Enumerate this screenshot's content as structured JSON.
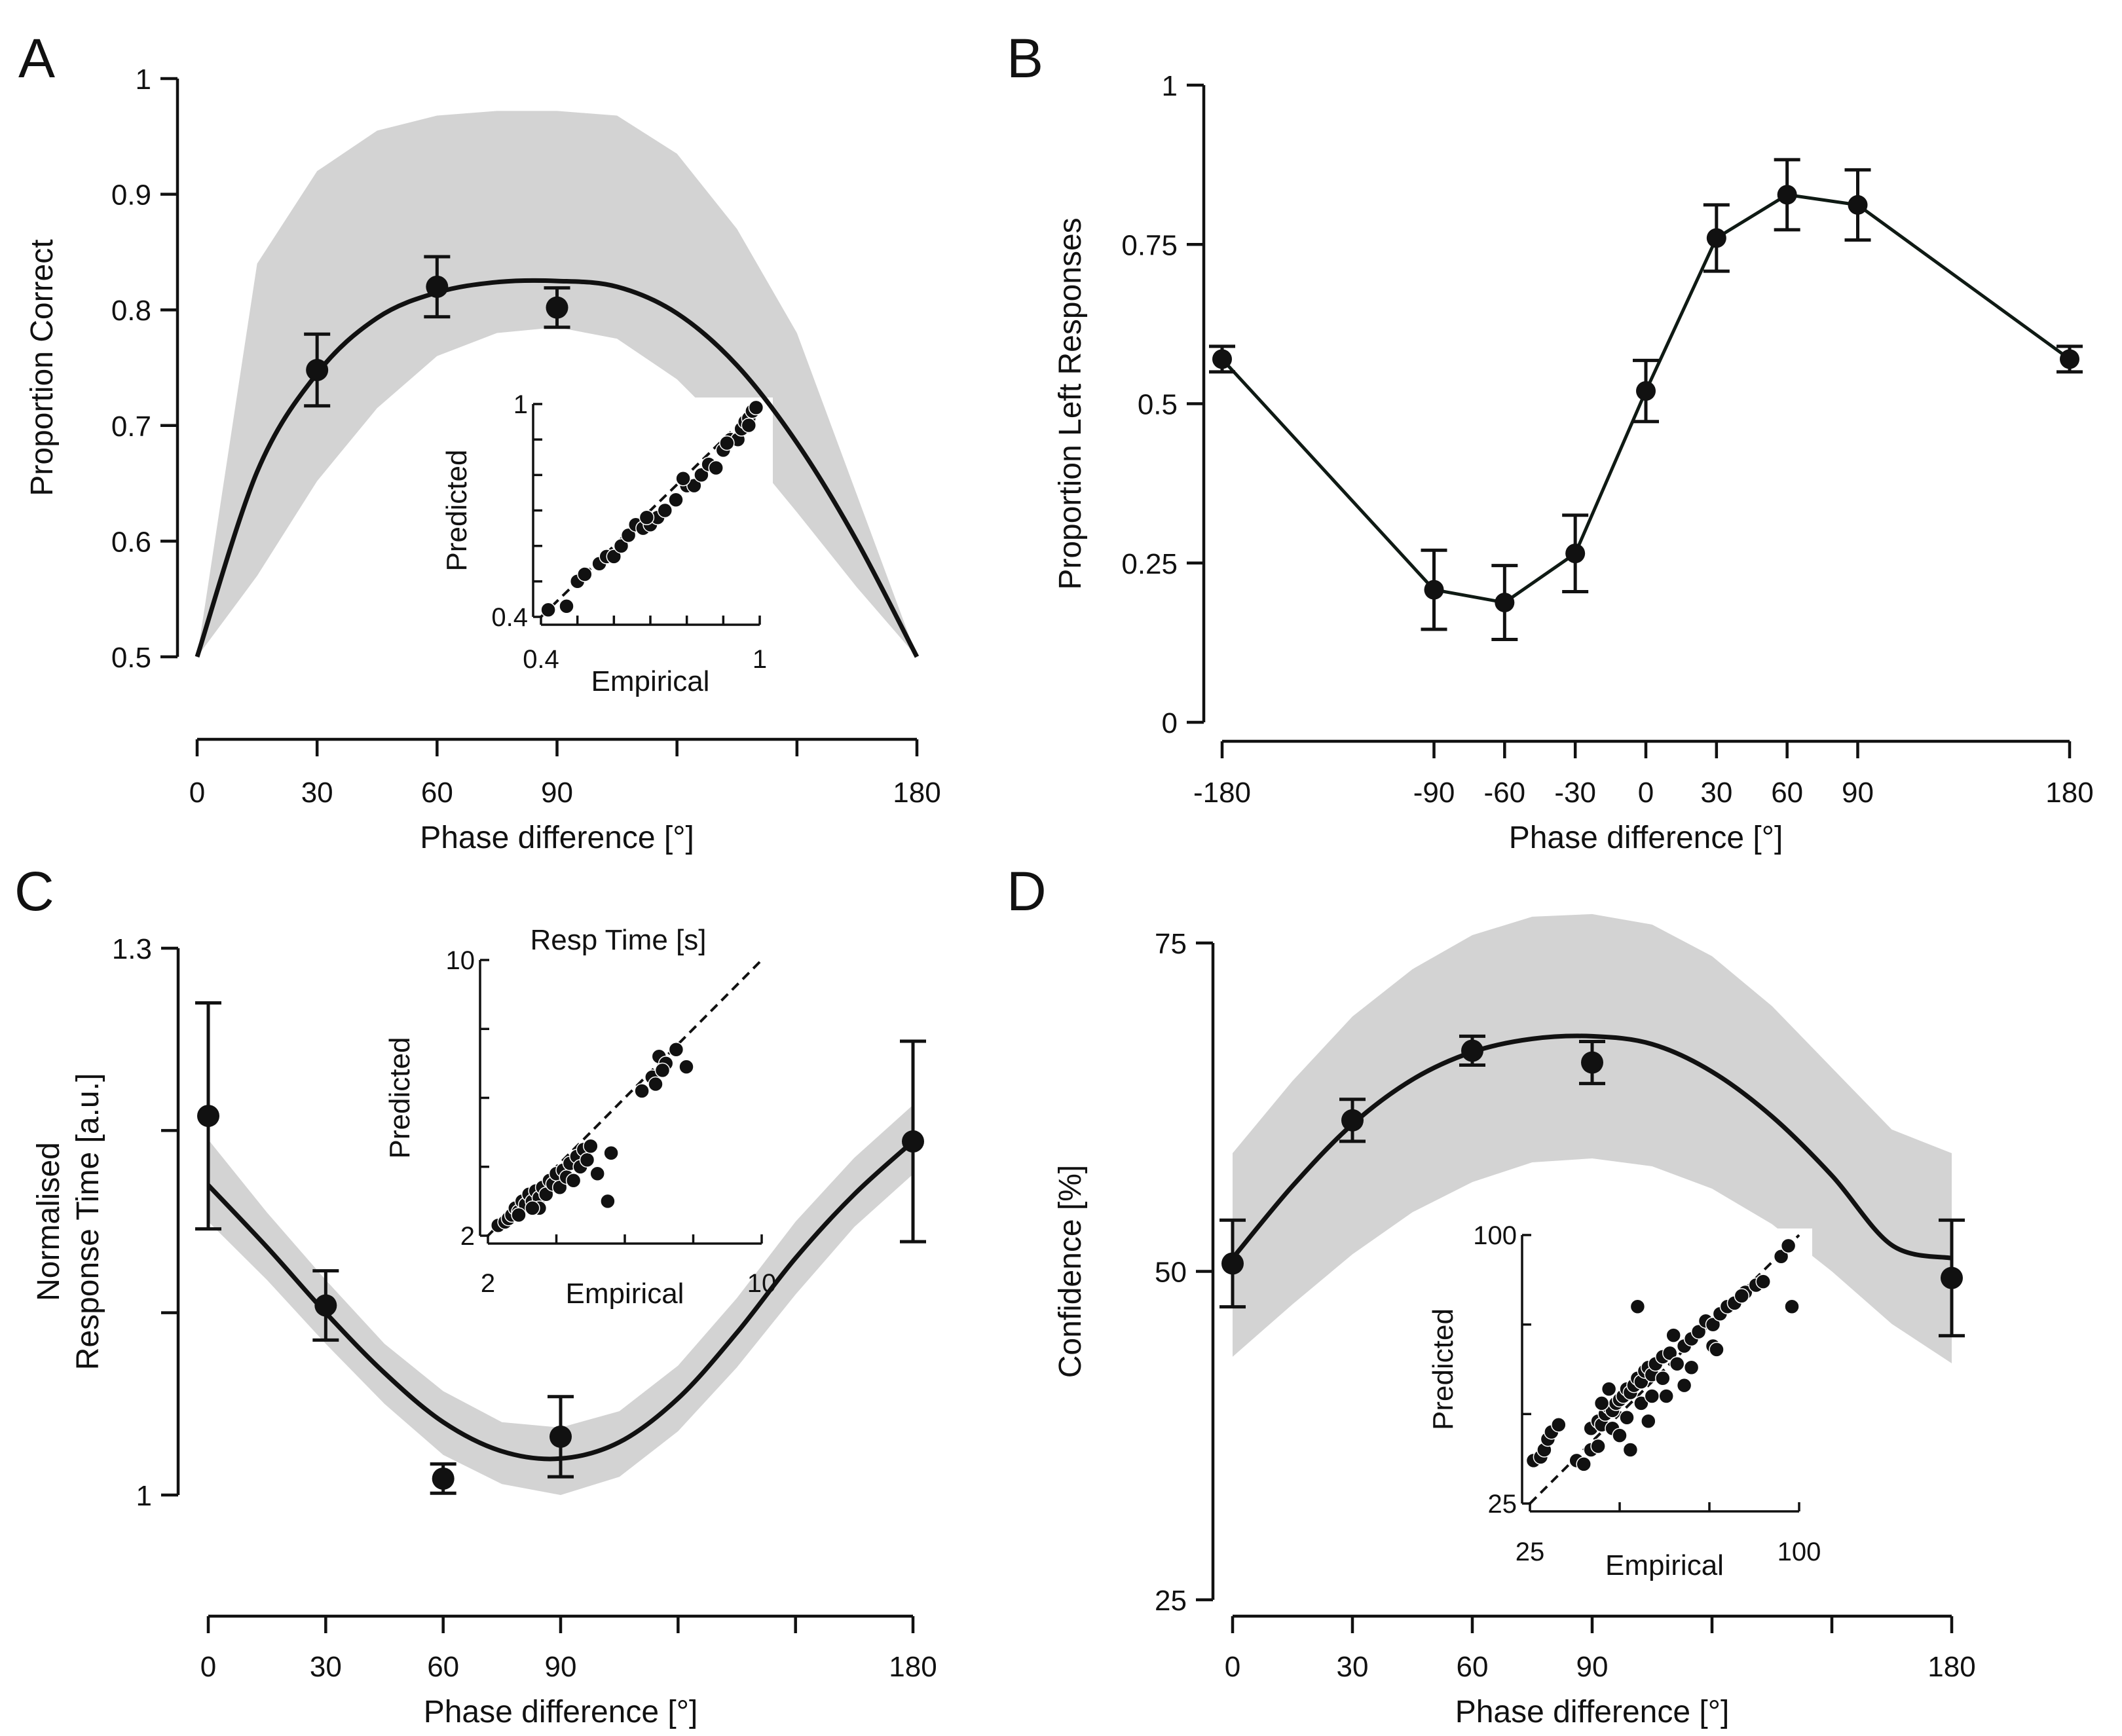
{
  "chart_data": [
    {
      "panel": "A",
      "type": "line",
      "xlabel": "Phase difference [°]",
      "ylabel": "Proportion Correct",
      "xlim": [
        0,
        180
      ],
      "ylim": [
        0.5,
        1
      ],
      "x_ticks": [
        0,
        30,
        60,
        90,
        120,
        150,
        180
      ],
      "x_tick_labels": [
        "0",
        "30",
        "60",
        "90",
        "",
        "",
        "180"
      ],
      "y_ticks": [
        0.5,
        0.6,
        0.7,
        0.8,
        0.9,
        1
      ],
      "y_tick_labels": [
        "0.5",
        "0.6",
        "0.7",
        "0.8",
        "0.9",
        "1"
      ],
      "points": [
        {
          "x": 30,
          "y": 0.748,
          "err": 0.031
        },
        {
          "x": 60,
          "y": 0.82,
          "err": 0.026
        },
        {
          "x": 90,
          "y": 0.802,
          "err": 0.017
        }
      ],
      "fit": {
        "x": [
          0,
          15,
          30,
          45,
          60,
          75,
          90,
          105,
          120,
          135,
          150,
          165,
          180
        ],
        "mean": [
          0.5,
          0.66,
          0.745,
          0.793,
          0.815,
          0.824,
          0.825,
          0.82,
          0.797,
          0.752,
          0.685,
          0.6,
          0.5
        ],
        "lower": [
          0.5,
          0.57,
          0.652,
          0.715,
          0.76,
          0.78,
          0.785,
          0.775,
          0.74,
          0.688,
          0.625,
          0.56,
          0.5
        ],
        "upper": [
          0.5,
          0.84,
          0.92,
          0.955,
          0.968,
          0.972,
          0.972,
          0.968,
          0.935,
          0.87,
          0.78,
          0.64,
          0.5
        ]
      },
      "inset": {
        "xlabel": "Empirical",
        "ylabel": "Predicted",
        "title": "",
        "xlim": [
          0.4,
          1
        ],
        "ylim": [
          0.4,
          1
        ],
        "tick_labels": {
          "xmin": "0.4",
          "xmax": "1",
          "ymin": "0.4",
          "ymax": "1"
        },
        "minor_ticks": [
          0.5,
          0.6,
          0.7,
          0.8,
          0.9
        ],
        "points": [
          [
            0.42,
            0.42
          ],
          [
            0.47,
            0.43
          ],
          [
            0.5,
            0.5
          ],
          [
            0.52,
            0.52
          ],
          [
            0.56,
            0.55
          ],
          [
            0.58,
            0.57
          ],
          [
            0.6,
            0.57
          ],
          [
            0.62,
            0.6
          ],
          [
            0.64,
            0.63
          ],
          [
            0.66,
            0.66
          ],
          [
            0.68,
            0.65
          ],
          [
            0.7,
            0.66
          ],
          [
            0.72,
            0.68
          ],
          [
            0.74,
            0.7
          ],
          [
            0.69,
            0.68
          ],
          [
            0.77,
            0.73
          ],
          [
            0.8,
            0.77
          ],
          [
            0.82,
            0.77
          ],
          [
            0.84,
            0.8
          ],
          [
            0.86,
            0.83
          ],
          [
            0.88,
            0.82
          ],
          [
            0.9,
            0.87
          ],
          [
            0.92,
            0.9
          ],
          [
            0.94,
            0.9
          ],
          [
            0.95,
            0.93
          ],
          [
            0.96,
            0.95
          ],
          [
            0.97,
            0.96
          ],
          [
            0.98,
            0.98
          ],
          [
            0.99,
            0.99
          ],
          [
            0.97,
            0.94
          ],
          [
            0.91,
            0.89
          ],
          [
            0.79,
            0.79
          ]
        ]
      }
    },
    {
      "panel": "B",
      "type": "line",
      "xlabel": "Phase difference [°]",
      "ylabel": "Proportion Left Responses",
      "xlim": [
        -180,
        180
      ],
      "ylim": [
        0,
        1
      ],
      "x_ticks": [
        -180,
        -90,
        -60,
        -30,
        0,
        30,
        60,
        90,
        180
      ],
      "x_tick_labels": [
        "-180",
        "-90",
        "-60",
        "-30",
        "0",
        "30",
        "60",
        "90",
        "180"
      ],
      "y_ticks": [
        0,
        0.25,
        0.5,
        0.75,
        1
      ],
      "y_tick_labels": [
        "0",
        "0.25",
        "0.5",
        "0.75",
        "1"
      ],
      "points": [
        {
          "x": -180,
          "y": 0.57,
          "err": 0.02
        },
        {
          "x": -90,
          "y": 0.208,
          "err": 0.062
        },
        {
          "x": -60,
          "y": 0.188,
          "err": 0.058
        },
        {
          "x": -30,
          "y": 0.265,
          "err": 0.06
        },
        {
          "x": 0,
          "y": 0.52,
          "err": 0.048
        },
        {
          "x": 30,
          "y": 0.76,
          "err": 0.052
        },
        {
          "x": 60,
          "y": 0.828,
          "err": 0.055
        },
        {
          "x": 90,
          "y": 0.812,
          "err": 0.055
        },
        {
          "x": 180,
          "y": 0.57,
          "err": 0.02
        }
      ]
    },
    {
      "panel": "C",
      "type": "line",
      "xlabel": "Phase difference [°]",
      "ylabel": "Normalised Response Time [a.u.]",
      "xlim": [
        0,
        180
      ],
      "ylim": [
        1,
        1.3
      ],
      "x_ticks": [
        0,
        30,
        60,
        90,
        120,
        150,
        180
      ],
      "x_tick_labels": [
        "0",
        "30",
        "60",
        "90",
        "",
        "",
        "180"
      ],
      "y_ticks": [
        1,
        1.1,
        1.2,
        1.3
      ],
      "y_tick_labels": [
        "1",
        "",
        "",
        "1.3"
      ],
      "points": [
        {
          "x": 0,
          "y": 1.208,
          "err": 0.062
        },
        {
          "x": 30,
          "y": 1.104,
          "err": 0.019
        },
        {
          "x": 60,
          "y": 1.009,
          "err": 0.008
        },
        {
          "x": 90,
          "y": 1.032,
          "err": 0.022
        },
        {
          "x": 180,
          "y": 1.194,
          "err": 0.055
        }
      ],
      "fit": {
        "x": [
          0,
          15,
          30,
          45,
          60,
          75,
          90,
          105,
          120,
          135,
          150,
          165,
          180
        ],
        "mean": [
          1.17,
          1.136,
          1.1,
          1.067,
          1.04,
          1.024,
          1.02,
          1.029,
          1.053,
          1.089,
          1.13,
          1.165,
          1.194
        ],
        "lower": [
          1.15,
          1.118,
          1.083,
          1.05,
          1.022,
          1.006,
          1.0,
          1.01,
          1.035,
          1.07,
          1.11,
          1.147,
          1.176
        ],
        "upper": [
          1.195,
          1.155,
          1.118,
          1.083,
          1.057,
          1.04,
          1.037,
          1.046,
          1.071,
          1.108,
          1.15,
          1.185,
          1.214
        ]
      },
      "inset": {
        "xlabel": "Empirical",
        "ylabel": "Predicted",
        "title": "Resp Time [s]",
        "xlim": [
          2,
          10
        ],
        "ylim": [
          2,
          10
        ],
        "tick_labels": {
          "xmin": "2",
          "xmax": "10",
          "ymin": "2",
          "ymax": "10"
        },
        "minor_ticks": [
          4,
          6,
          8
        ],
        "points": [
          [
            2.3,
            2.3
          ],
          [
            2.5,
            2.4
          ],
          [
            2.6,
            2.5
          ],
          [
            2.7,
            2.6
          ],
          [
            2.8,
            2.8
          ],
          [
            2.9,
            2.7
          ],
          [
            3.0,
            3.0
          ],
          [
            3.1,
            2.9
          ],
          [
            3.2,
            3.2
          ],
          [
            3.3,
            3.0
          ],
          [
            3.4,
            3.3
          ],
          [
            3.5,
            3.1
          ],
          [
            3.6,
            3.4
          ],
          [
            3.7,
            3.2
          ],
          [
            3.8,
            3.6
          ],
          [
            3.9,
            3.5
          ],
          [
            4.0,
            3.8
          ],
          [
            4.1,
            3.4
          ],
          [
            4.2,
            3.9
          ],
          [
            4.3,
            3.7
          ],
          [
            4.4,
            4.1
          ],
          [
            4.5,
            3.6
          ],
          [
            4.6,
            4.3
          ],
          [
            4.7,
            4.0
          ],
          [
            4.8,
            4.5
          ],
          [
            4.9,
            4.2
          ],
          [
            5.0,
            4.6
          ],
          [
            3.5,
            2.8
          ],
          [
            5.5,
            3.0
          ],
          [
            5.2,
            3.8
          ],
          [
            5.6,
            4.4
          ],
          [
            2.9,
            2.6
          ],
          [
            3.3,
            2.8
          ],
          [
            6.5,
            6.2
          ],
          [
            6.8,
            6.6
          ],
          [
            7.0,
            7.2
          ],
          [
            7.2,
            7.0
          ],
          [
            7.5,
            7.4
          ],
          [
            7.8,
            6.9
          ],
          [
            6.9,
            6.4
          ],
          [
            7.1,
            6.8
          ]
        ]
      }
    },
    {
      "panel": "D",
      "type": "line",
      "xlabel": "Phase difference [°]",
      "ylabel": "Confidence [%]",
      "xlim": [
        0,
        180
      ],
      "ylim": [
        25,
        75
      ],
      "x_ticks": [
        0,
        30,
        60,
        90,
        120,
        150,
        180
      ],
      "x_tick_labels": [
        "0",
        "30",
        "60",
        "90",
        "",
        "",
        "180"
      ],
      "y_ticks": [
        25,
        50,
        75
      ],
      "y_tick_labels": [
        "25",
        "50",
        "75"
      ],
      "points": [
        {
          "x": 0,
          "y": 50.6,
          "err": 3.3
        },
        {
          "x": 30,
          "y": 61.5,
          "err": 1.6
        },
        {
          "x": 60,
          "y": 66.8,
          "err": 1.1
        },
        {
          "x": 90,
          "y": 65.9,
          "err": 1.6
        },
        {
          "x": 180,
          "y": 49.5,
          "err": 4.4
        }
      ],
      "fit": {
        "x": [
          0,
          15,
          30,
          45,
          60,
          75,
          90,
          105,
          120,
          135,
          150,
          165,
          180
        ],
        "mean": [
          51,
          56.5,
          61.2,
          64.6,
          66.7,
          67.7,
          67.9,
          67.3,
          65.2,
          61.8,
          57.3,
          52,
          51
        ],
        "lower": [
          43.5,
          47.5,
          51.3,
          54.5,
          56.8,
          58.3,
          58.6,
          58.0,
          56.3,
          53.6,
          50.0,
          46.0,
          43.0
        ],
        "upper": [
          59,
          64.5,
          69.4,
          73.0,
          75.6,
          77.0,
          77.2,
          76.4,
          74.0,
          70.2,
          65.5,
          60.8,
          59
        ]
      },
      "inset": {
        "xlabel": "Empirical",
        "ylabel": "Predicted",
        "title": "",
        "xlim": [
          25,
          100
        ],
        "ylim": [
          25,
          100
        ],
        "tick_labels": {
          "xmin": "25",
          "xmax": "100",
          "ymin": "25",
          "ymax": "100"
        },
        "minor_ticks": [
          50,
          75
        ],
        "points": [
          [
            26,
            37
          ],
          [
            28,
            38
          ],
          [
            29,
            40
          ],
          [
            30,
            43
          ],
          [
            31,
            45
          ],
          [
            33,
            47
          ],
          [
            38,
            37
          ],
          [
            40,
            36
          ],
          [
            42,
            46
          ],
          [
            44,
            48
          ],
          [
            45,
            47
          ],
          [
            46,
            50
          ],
          [
            47,
            52
          ],
          [
            48,
            51
          ],
          [
            49,
            53
          ],
          [
            50,
            54
          ],
          [
            51,
            55
          ],
          [
            52,
            57
          ],
          [
            53,
            56
          ],
          [
            54,
            58
          ],
          [
            55,
            60
          ],
          [
            56,
            59
          ],
          [
            57,
            62
          ],
          [
            58,
            63
          ],
          [
            59,
            61
          ],
          [
            60,
            64
          ],
          [
            62,
            66
          ],
          [
            64,
            67
          ],
          [
            66,
            64
          ],
          [
            68,
            69
          ],
          [
            70,
            71
          ],
          [
            72,
            73
          ],
          [
            74,
            76
          ],
          [
            76,
            75
          ],
          [
            78,
            78
          ],
          [
            80,
            80
          ],
          [
            82,
            81
          ],
          [
            85,
            84
          ],
          [
            88,
            86
          ],
          [
            90,
            87
          ],
          [
            95,
            94
          ],
          [
            97,
            97
          ],
          [
            98,
            80
          ],
          [
            55,
            80
          ],
          [
            65,
            72
          ],
          [
            68,
            58
          ],
          [
            76,
            69
          ],
          [
            48,
            46
          ],
          [
            50,
            44
          ],
          [
            53,
            40
          ],
          [
            56,
            53
          ],
          [
            59,
            55
          ],
          [
            62,
            60
          ],
          [
            45,
            53
          ],
          [
            42,
            40
          ],
          [
            44,
            41
          ],
          [
            47,
            57
          ],
          [
            52,
            49
          ],
          [
            58,
            48
          ],
          [
            63,
            55
          ],
          [
            70,
            63
          ],
          [
            77,
            68
          ],
          [
            84,
            83
          ]
        ]
      }
    }
  ]
}
